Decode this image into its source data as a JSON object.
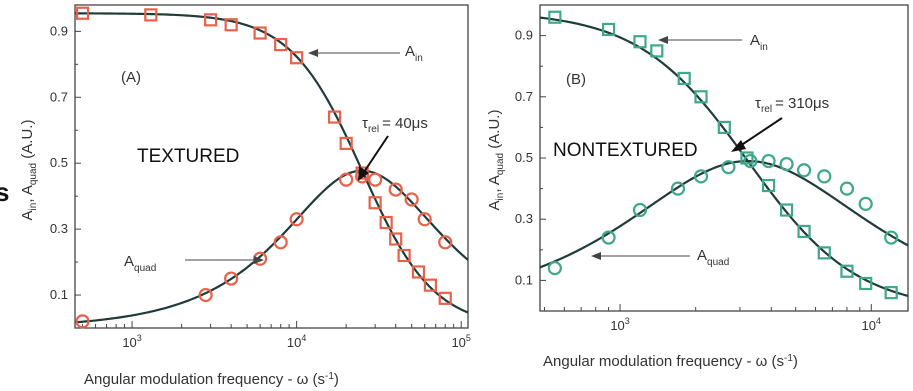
{
  "colors": {
    "panelA_marker": "#e8624a",
    "panelB_marker": "#3fa88a",
    "curve": "#1f3b3a",
    "axis": "#444444"
  },
  "chart_data": [
    {
      "type": "scatter",
      "panel_label": "(A)",
      "overlay_text": "TEXTURED",
      "xlabel": "Angular modulation frequency - ω (s⁻¹)",
      "ylabel": "A_in, A_quad (A.U.)",
      "xscale": "log",
      "xlim": [
        450,
        110000
      ],
      "ylim": [
        0.0,
        0.98
      ],
      "xticks": [
        {
          "base": "10",
          "exp": "3",
          "value": 1000
        },
        {
          "base": "10",
          "exp": "4",
          "value": 10000
        },
        {
          "base": "10",
          "exp": "5",
          "value": 100000
        }
      ],
      "yticks": [
        "0.1",
        "0.3",
        "0.5",
        "0.7",
        "0.9"
      ],
      "tau_base": "τ",
      "tau_sub": "rel",
      "tau_value": "= 40μs",
      "tau": 4e-05,
      "series": [
        {
          "name": "A_in",
          "label_main": "A",
          "label_sub": "in",
          "marker": "square",
          "fit": "in",
          "amp": 0.955,
          "x": [
            500,
            1300,
            3000,
            4000,
            6000,
            8000,
            10000,
            17000,
            20000,
            25000,
            30000,
            35000,
            40000,
            45000,
            55000,
            65000,
            80000
          ],
          "y": [
            0.955,
            0.95,
            0.935,
            0.92,
            0.895,
            0.86,
            0.82,
            0.64,
            0.56,
            0.47,
            0.38,
            0.32,
            0.27,
            0.22,
            0.17,
            0.13,
            0.09
          ]
        },
        {
          "name": "A_quad",
          "label_main": "A",
          "label_sub": "quad",
          "marker": "circle",
          "fit": "quad",
          "amp": 0.955,
          "x": [
            500,
            2800,
            4000,
            6000,
            8000,
            10000,
            20000,
            25000,
            30000,
            40000,
            50000,
            60000,
            80000
          ],
          "y": [
            0.02,
            0.1,
            0.15,
            0.21,
            0.26,
            0.33,
            0.45,
            0.46,
            0.45,
            0.42,
            0.39,
            0.33,
            0.26
          ]
        }
      ]
    },
    {
      "type": "scatter",
      "panel_label": "(B)",
      "overlay_text": "NONTEXTURED",
      "xlabel": "Angular modulation frequency - ω (s⁻¹)",
      "ylabel": "A_in, A_quad (A.U.)",
      "xscale": "log",
      "xlim": [
        480,
        14000
      ],
      "ylim": [
        0.0,
        1.0
      ],
      "xticks": [
        {
          "base": "10",
          "exp": "3",
          "value": 1000
        },
        {
          "base": "10",
          "exp": "4",
          "value": 10000
        }
      ],
      "yticks": [
        "0.1",
        "0.3",
        "0.5",
        "0.7",
        "0.9"
      ],
      "tau_base": "τ",
      "tau_sub": "rel",
      "tau_value": "= 310μs",
      "tau": 0.00031,
      "series": [
        {
          "name": "A_in",
          "label_main": "A",
          "label_sub": "in",
          "marker": "square",
          "fit": "in",
          "amp": 0.98,
          "x": [
            550,
            900,
            1200,
            1400,
            1800,
            2100,
            2600,
            3200,
            3900,
            4600,
            5400,
            6500,
            8000,
            9500,
            12000
          ],
          "y": [
            0.96,
            0.92,
            0.88,
            0.85,
            0.76,
            0.7,
            0.6,
            0.5,
            0.41,
            0.33,
            0.26,
            0.19,
            0.13,
            0.09,
            0.06
          ]
        },
        {
          "name": "A_quad",
          "label_main": "A",
          "label_sub": "quad",
          "marker": "circle",
          "fit": "quad",
          "amp": 0.98,
          "x": [
            550,
            900,
            1200,
            1700,
            2100,
            2700,
            3300,
            3900,
            4600,
            5400,
            6500,
            8000,
            9500,
            12000
          ],
          "y": [
            0.14,
            0.24,
            0.33,
            0.4,
            0.44,
            0.47,
            0.49,
            0.49,
            0.48,
            0.46,
            0.44,
            0.4,
            0.35,
            0.24
          ]
        }
      ]
    }
  ]
}
